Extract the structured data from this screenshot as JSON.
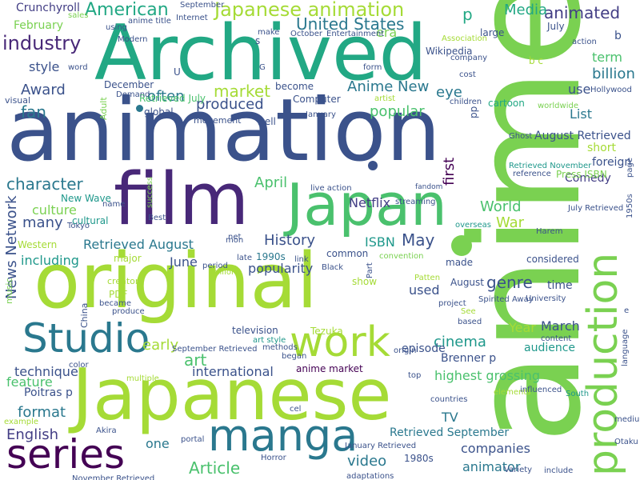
{
  "palette": {
    "background": "#ffffff",
    "lime": "#a5db36",
    "green": "#7ad151",
    "mid_green": "#4ac16d",
    "teal_green": "#22a884",
    "teal": "#1f988b",
    "cyan_blue": "#2a788e",
    "blue": "#3b528b",
    "indigo": "#433e85",
    "purple": "#482878",
    "deep_purple": "#440154"
  },
  "words": [
    {
      "text": "anime",
      "color": "#7ad151"
    },
    {
      "text": "animation",
      "color": "#3b528b"
    },
    {
      "text": "Archived",
      "color": "#22a884"
    },
    {
      "text": "film",
      "color": "#482878"
    },
    {
      "text": "Japan",
      "color": "#4ac16d"
    },
    {
      "text": "original",
      "color": "#a5db36"
    },
    {
      "text": "Japanese",
      "color": "#a5db36"
    },
    {
      "text": "production",
      "color": "#7ad151"
    },
    {
      "text": "manga",
      "color": "#2a788e"
    },
    {
      "text": "Studio",
      "color": "#2a788e"
    },
    {
      "text": "work",
      "color": "#a5db36"
    },
    {
      "text": "series",
      "color": "#440154"
    },
    {
      "text": "Japanese animation",
      "color": "#a5db36"
    },
    {
      "text": "American",
      "color": "#22a884"
    },
    {
      "text": "industry",
      "color": "#482878"
    },
    {
      "text": "United States",
      "color": "#2a788e"
    },
    {
      "text": "animated",
      "color": "#433e85"
    },
    {
      "text": "Media",
      "color": "#22a884"
    },
    {
      "text": "p",
      "color": "#22a884"
    },
    {
      "text": "Award",
      "color": "#3b528b"
    },
    {
      "text": "market",
      "color": "#a5db36"
    },
    {
      "text": "produced",
      "color": "#3b528b"
    },
    {
      "text": "often",
      "color": "#2a788e"
    },
    {
      "text": "style",
      "color": "#3b528b"
    },
    {
      "text": "fan",
      "color": "#2a788e"
    },
    {
      "text": "character",
      "color": "#2a788e"
    },
    {
      "text": "culture",
      "color": "#7ad151"
    },
    {
      "text": "many",
      "color": "#3b528b"
    },
    {
      "text": "including",
      "color": "#1f988b"
    },
    {
      "text": "Anime New",
      "color": "#2a788e"
    },
    {
      "text": "popular",
      "color": "#4ac16d"
    },
    {
      "text": "eye",
      "color": "#2a788e"
    },
    {
      "text": "billion",
      "color": "#2a788e"
    },
    {
      "text": "use",
      "color": "#3b528b"
    },
    {
      "text": "List",
      "color": "#2a788e"
    },
    {
      "text": "first",
      "color": "#440154"
    },
    {
      "text": "World",
      "color": "#4ac16d"
    },
    {
      "text": "War",
      "color": "#a5db36"
    },
    {
      "text": "History",
      "color": "#3b528b"
    },
    {
      "text": "Netflix",
      "color": "#433e85"
    },
    {
      "text": "April",
      "color": "#4ac16d"
    },
    {
      "text": "May",
      "color": "#3b528b"
    },
    {
      "text": "ISBN",
      "color": "#1f988b"
    },
    {
      "text": "genre",
      "color": "#3b528b"
    },
    {
      "text": "News Network",
      "color": "#3b528b"
    },
    {
      "text": "Retrieved August",
      "color": "#2a788e"
    },
    {
      "text": "June",
      "color": "#3b528b"
    },
    {
      "text": "popularity",
      "color": "#3b528b"
    },
    {
      "text": "art",
      "color": "#4ac16d"
    },
    {
      "text": "early",
      "color": "#a5db36"
    },
    {
      "text": "international",
      "color": "#3b528b"
    },
    {
      "text": "technique",
      "color": "#3b528b"
    },
    {
      "text": "feature",
      "color": "#4ac16d"
    },
    {
      "text": "format",
      "color": "#2a788e"
    },
    {
      "text": "English",
      "color": "#433e85"
    },
    {
      "text": "one",
      "color": "#2a788e"
    },
    {
      "text": "Article",
      "color": "#4ac16d"
    },
    {
      "text": "video",
      "color": "#2a788e"
    },
    {
      "text": "TV",
      "color": "#2a788e"
    },
    {
      "text": "cinema",
      "color": "#1f988b"
    },
    {
      "text": "highest grossing",
      "color": "#4ac16d"
    },
    {
      "text": "Brenner p",
      "color": "#3b528b"
    },
    {
      "text": "Year",
      "color": "#a5db36"
    },
    {
      "text": "March",
      "color": "#3b528b"
    },
    {
      "text": "audience",
      "color": "#1f988b"
    },
    {
      "text": "episode",
      "color": "#3b528b"
    },
    {
      "text": "companies",
      "color": "#3b528b"
    },
    {
      "text": "animator",
      "color": "#2a788e"
    },
    {
      "text": "Retrieved September",
      "color": "#2a788e"
    },
    {
      "text": "term",
      "color": "#4ac16d"
    },
    {
      "text": "short",
      "color": "#a5db36"
    },
    {
      "text": "foreign",
      "color": "#3b528b"
    },
    {
      "text": "August Retrieved",
      "color": "#3b528b"
    },
    {
      "text": "Comedy",
      "color": "#433e85"
    },
    {
      "text": "used",
      "color": "#3b528b"
    },
    {
      "text": "time",
      "color": "#3b528b"
    },
    {
      "text": "Crunchyroll",
      "color": "#433e85"
    },
    {
      "text": "February",
      "color": "#7ad151"
    },
    {
      "text": "Retrieved July",
      "color": "#4ac16d"
    },
    {
      "text": "Wikipedia",
      "color": "#3b528b"
    },
    {
      "text": "Computer",
      "color": "#3b528b"
    },
    {
      "text": "cartoon",
      "color": "#22a884"
    },
    {
      "text": "global",
      "color": "#3b528b"
    },
    {
      "text": "Poitras p",
      "color": "#3b528b"
    },
    {
      "text": "Western",
      "color": "#a5db36"
    },
    {
      "text": "major",
      "color": "#a5db36"
    },
    {
      "text": "PDF",
      "color": "#a5db36"
    },
    {
      "text": "New Wave",
      "color": "#1f988b"
    },
    {
      "text": "television",
      "color": "#3b528b"
    },
    {
      "text": "anime market",
      "color": "#440154"
    },
    {
      "text": "1980s",
      "color": "#3b528b"
    },
    {
      "text": "1990s",
      "color": "#2a788e"
    },
    {
      "text": "December",
      "color": "#3b528b"
    },
    {
      "text": "visual",
      "color": "#3b528b"
    },
    {
      "text": "Adult",
      "color": "#7ad151"
    },
    {
      "text": "music",
      "color": "#7ad151"
    },
    {
      "text": "China",
      "color": "#3b528b"
    },
    {
      "text": "made",
      "color": "#3b528b"
    },
    {
      "text": "considered",
      "color": "#3b528b"
    },
    {
      "text": "common",
      "color": "#3b528b"
    },
    {
      "text": "August",
      "color": "#3b528b"
    },
    {
      "text": "Tezuka",
      "color": "#a5db36"
    },
    {
      "text": "show",
      "color": "#a5db36"
    },
    {
      "text": "well",
      "color": "#3b528b"
    },
    {
      "text": "movement",
      "color": "#3b528b"
    },
    {
      "text": "large",
      "color": "#3b528b"
    },
    {
      "text": "company",
      "color": "#3b528b"
    },
    {
      "text": "cost",
      "color": "#3b528b"
    },
    {
      "text": "children",
      "color": "#3b528b"
    },
    {
      "text": "Hollywood",
      "color": "#3b528b"
    },
    {
      "text": "worldwide",
      "color": "#7ad151"
    },
    {
      "text": "era",
      "color": "#7ad151"
    },
    {
      "text": "October",
      "color": "#3b528b"
    },
    {
      "text": "Entertainment",
      "color": "#3b528b"
    },
    {
      "text": "make",
      "color": "#3b528b"
    },
    {
      "text": "Modern",
      "color": "#3b528b"
    },
    {
      "text": "using",
      "color": "#3b528b"
    },
    {
      "text": "anime title",
      "color": "#3b528b"
    },
    {
      "text": "sales",
      "color": "#7ad151"
    },
    {
      "text": "Internet",
      "color": "#3b528b"
    },
    {
      "text": "September",
      "color": "#3b528b"
    },
    {
      "text": "Demand",
      "color": "#3b528b"
    },
    {
      "text": "become",
      "color": "#3b528b"
    },
    {
      "text": "January",
      "color": "#3b528b"
    },
    {
      "text": "Association",
      "color": "#a5db36"
    },
    {
      "text": "action",
      "color": "#3b528b"
    },
    {
      "text": "July",
      "color": "#3b528b"
    },
    {
      "text": "b",
      "color": "#3b528b"
    },
    {
      "text": "b c",
      "color": "#a5db36"
    },
    {
      "text": "form",
      "color": "#3b528b"
    },
    {
      "text": "artist",
      "color": "#a5db36"
    },
    {
      "text": "U",
      "color": "#3b528b"
    },
    {
      "text": "G",
      "color": "#3b528b"
    },
    {
      "text": "word",
      "color": "#3b528b"
    },
    {
      "text": "s",
      "color": "#3b528b"
    },
    {
      "text": "pp",
      "color": "#3b528b"
    },
    {
      "text": "Ghost",
      "color": "#3b528b"
    },
    {
      "text": "Retrieved November",
      "color": "#1f988b"
    },
    {
      "text": "reference",
      "color": "#3b528b"
    },
    {
      "text": "Press ISBN",
      "color": "#7ad151"
    },
    {
      "text": "page",
      "color": "#3b528b"
    },
    {
      "text": "July Retrieved",
      "color": "#3b528b"
    },
    {
      "text": "overseas",
      "color": "#1f988b"
    },
    {
      "text": "Harem",
      "color": "#3b528b"
    },
    {
      "text": "1950s",
      "color": "#3b528b"
    },
    {
      "text": "convention",
      "color": "#7ad151"
    },
    {
      "text": "fandom",
      "color": "#3b528b"
    },
    {
      "text": "streaming",
      "color": "#3b528b"
    },
    {
      "text": "live action",
      "color": "#3b528b"
    },
    {
      "text": "success",
      "color": "#7ad151"
    },
    {
      "text": "name",
      "color": "#3b528b"
    },
    {
      "text": "Best",
      "color": "#3b528b"
    },
    {
      "text": "cultural",
      "color": "#1f988b"
    },
    {
      "text": "Tokyo",
      "color": "#3b528b"
    },
    {
      "text": "net",
      "color": "#3b528b"
    },
    {
      "text": "mon",
      "color": "#3b528b"
    },
    {
      "text": "late",
      "color": "#3b528b"
    },
    {
      "text": "period",
      "color": "#3b528b"
    },
    {
      "text": "million",
      "color": "#a5db36"
    },
    {
      "text": "link",
      "color": "#3b528b"
    },
    {
      "text": "Black",
      "color": "#3b528b"
    },
    {
      "text": "Part",
      "color": "#3b528b"
    },
    {
      "text": "Patten",
      "color": "#a5db36"
    },
    {
      "text": "Spirited Away",
      "color": "#3b528b"
    },
    {
      "text": "creator",
      "color": "#a5db36"
    },
    {
      "text": "became",
      "color": "#3b528b"
    },
    {
      "text": "produce",
      "color": "#3b528b"
    },
    {
      "text": "University",
      "color": "#3b528b"
    },
    {
      "text": "project",
      "color": "#3b528b"
    },
    {
      "text": "See",
      "color": "#a5db36"
    },
    {
      "text": "based",
      "color": "#3b528b"
    },
    {
      "text": "content",
      "color": "#3b528b"
    },
    {
      "text": "e",
      "color": "#3b528b"
    },
    {
      "text": "language",
      "color": "#3b528b"
    },
    {
      "text": "color",
      "color": "#3b528b"
    },
    {
      "text": "September Retrieved",
      "color": "#3b528b"
    },
    {
      "text": "art style",
      "color": "#1f988b"
    },
    {
      "text": "methods",
      "color": "#3b528b"
    },
    {
      "text": "began",
      "color": "#3b528b"
    },
    {
      "text": "origin",
      "color": "#3b528b"
    },
    {
      "text": "top",
      "color": "#3b528b"
    },
    {
      "text": "countries",
      "color": "#3b528b"
    },
    {
      "text": "elements",
      "color": "#a5db36"
    },
    {
      "text": "influenced",
      "color": "#3b528b"
    },
    {
      "text": "South",
      "color": "#1f988b"
    },
    {
      "text": "multiple",
      "color": "#a5db36"
    },
    {
      "text": "cel",
      "color": "#3b528b"
    },
    {
      "text": "example",
      "color": "#a5db36"
    },
    {
      "text": "Akira",
      "color": "#3b528b"
    },
    {
      "text": "portal",
      "color": "#3b528b"
    },
    {
      "text": "Horror",
      "color": "#3b528b"
    },
    {
      "text": "Picture",
      "color": "#3b528b"
    },
    {
      "text": "January Retrieved",
      "color": "#3b528b"
    },
    {
      "text": "medium",
      "color": "#3b528b"
    },
    {
      "text": "Otaku",
      "color": "#3b528b"
    },
    {
      "text": "Variety",
      "color": "#3b528b"
    },
    {
      "text": "include",
      "color": "#3b528b"
    },
    {
      "text": "November Retrieved",
      "color": "#3b528b"
    },
    {
      "text": "adaptations",
      "color": "#3b528b"
    }
  ]
}
